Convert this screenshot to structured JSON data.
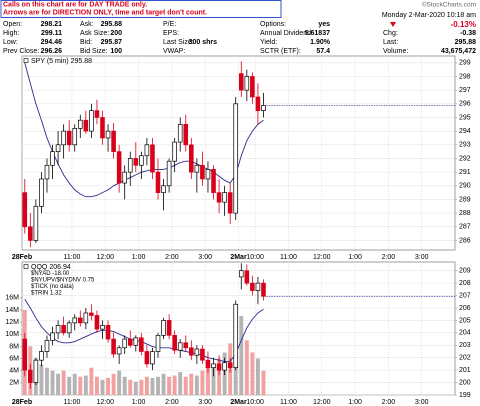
{
  "header": {
    "notice": [
      "Calls on this chart are for DAY TRADE only.",
      "Arrows are for DIRECTION ONLY, time and target don't count."
    ],
    "logo": "©StockCharts.com",
    "date": "Monday 2-Mar-2020 10:18 am",
    "change_pct": "-0.13%",
    "rows": [
      [
        [
          "Open:",
          "298.21"
        ],
        [
          "Ask:",
          "295.88"
        ],
        [
          "P/E:"
        ],
        [
          "Options:",
          "yes"
        ],
        null
      ],
      [
        [
          "High:",
          "299.11"
        ],
        [
          "Ask Size:",
          "200"
        ],
        [
          "EPS:"
        ],
        [
          "Annual Dividend:",
          "5.61837"
        ],
        [
          "Chg:",
          "-0.38"
        ]
      ],
      [
        [
          "Low:",
          "294.46"
        ],
        [
          "Bid:",
          "295.87"
        ],
        [
          "Last Size:",
          "300 shrs"
        ],
        [
          "Yield:",
          "1.90%"
        ],
        [
          "Last:",
          "295.88"
        ]
      ],
      [
        [
          "Prev Close:",
          "296.26"
        ],
        [
          "Bid Size:",
          "100"
        ],
        [
          "VWAP:"
        ],
        [
          "SCTR (ETF):",
          "57.4"
        ],
        [
          "Volume:",
          "43,675,472"
        ]
      ]
    ]
  },
  "chart_data": [
    {
      "type": "candlestick",
      "legend": "SPY (5 min)",
      "legend_value": 295.88,
      "categories": [
        "28Feb",
        null,
        null,
        null,
        null,
        null,
        null,
        null,
        null,
        "11:00",
        null,
        null,
        null,
        null,
        null,
        "12:00",
        null,
        null,
        null,
        null,
        null,
        "1:00",
        null,
        null,
        null,
        null,
        null,
        "2:00",
        null,
        null,
        null,
        null,
        null,
        "3:00",
        null,
        null,
        null,
        null,
        null,
        "2Mar",
        null,
        null,
        "10:00",
        null,
        null,
        null,
        null,
        null,
        "11:00",
        null,
        null,
        null,
        null,
        null,
        "12:00",
        null,
        null,
        null,
        null,
        null,
        "1:00",
        null,
        null,
        null,
        null,
        null,
        "2:00",
        null,
        null,
        null,
        null,
        null,
        "3:00",
        null,
        null,
        null,
        null,
        null
      ],
      "open": [
        289.5,
        287,
        286,
        288.5,
        290.5,
        291.5,
        292.5,
        293,
        294,
        293,
        294.2,
        294.8,
        294,
        295.5,
        295,
        293.5,
        294,
        292.5,
        290.2,
        291,
        292,
        291.5,
        292.2,
        293,
        291,
        289.5,
        290,
        291.8,
        293.2,
        294.5,
        293,
        291,
        291.5,
        290.5,
        291.2,
        289.5,
        288.8,
        289.5,
        288,
        298.21,
        297,
        298,
        296.5,
        295.5,
        null,
        null,
        null,
        null,
        null,
        null,
        null,
        null,
        null,
        null,
        null,
        null,
        null,
        null,
        null,
        null,
        null,
        null,
        null,
        null,
        null,
        null,
        null,
        null,
        null,
        null,
        null,
        null,
        null,
        null,
        null,
        null,
        null,
        null
      ],
      "high": [
        290.5,
        288,
        289,
        291,
        292,
        293,
        294,
        294.5,
        294.8,
        294.5,
        295.2,
        295.5,
        296,
        296.3,
        295.5,
        294.5,
        294.6,
        293,
        291.5,
        292.5,
        293.2,
        292.5,
        293.5,
        293.5,
        292,
        290.5,
        292,
        293.5,
        295,
        295.2,
        293.5,
        292,
        292.5,
        291.8,
        291.5,
        290.5,
        290,
        290.2,
        296.5,
        299.11,
        298.5,
        298.3,
        297.5,
        296.8,
        null,
        null,
        null,
        null,
        null,
        null,
        null,
        null,
        null,
        null,
        null,
        null,
        null,
        null,
        null,
        null,
        null,
        null,
        null,
        null,
        null,
        null,
        null,
        null,
        null,
        null,
        null,
        null,
        null,
        null,
        null,
        null,
        null,
        null
      ],
      "low": [
        286.5,
        285.5,
        285.8,
        288,
        289.5,
        290.5,
        291.5,
        292,
        292.5,
        292.5,
        293.5,
        293.8,
        293.5,
        294.5,
        293,
        292.5,
        292,
        289.5,
        289,
        290,
        291,
        290.5,
        291.5,
        290.5,
        289,
        288.2,
        289.5,
        291,
        292.5,
        292.5,
        290.5,
        289.5,
        290,
        289.5,
        289,
        288,
        287.8,
        287.2,
        287.5,
        296.5,
        296.2,
        296,
        294.46,
        295,
        null,
        null,
        null,
        null,
        null,
        null,
        null,
        null,
        null,
        null,
        null,
        null,
        null,
        null,
        null,
        null,
        null,
        null,
        null,
        null,
        null,
        null,
        null,
        null,
        null,
        null,
        null,
        null,
        null,
        null,
        null,
        null,
        null,
        null
      ],
      "close": [
        287,
        286,
        288.5,
        290.5,
        291.5,
        292.5,
        293,
        294,
        293,
        294.2,
        294.8,
        294,
        295.5,
        295,
        293.5,
        294,
        292.5,
        290.2,
        291,
        292,
        291.5,
        292.2,
        293,
        291,
        289.5,
        290,
        291.8,
        293.2,
        294.5,
        293,
        291,
        291.5,
        290.5,
        291.2,
        289.5,
        288.8,
        289.5,
        288,
        296,
        297,
        298,
        296.5,
        295.5,
        295.88,
        null,
        null,
        null,
        null,
        null,
        null,
        null,
        null,
        null,
        null,
        null,
        null,
        null,
        null,
        null,
        null,
        null,
        null,
        null,
        null,
        null,
        null,
        null,
        null,
        null,
        null,
        null,
        null,
        null,
        null,
        null,
        null,
        null,
        null
      ],
      "ma": {
        "color": "#2e2a8f",
        "values": [
          299,
          297.5,
          296,
          294.8,
          293.5,
          292.5,
          291.6,
          290.8,
          290.2,
          289.7,
          289.4,
          289.2,
          289.2,
          289.3,
          289.5,
          289.7,
          290,
          290.2,
          290.4,
          290.6,
          290.8,
          291,
          291.1,
          291.2,
          291.2,
          291.2,
          291.3,
          291.5,
          291.7,
          291.8,
          291.8,
          291.6,
          291.4,
          291.2,
          291,
          290.7,
          290.4,
          290.2,
          290.8,
          292.2,
          293.3,
          294,
          294.5,
          294.8,
          null,
          null,
          null,
          null,
          null,
          null,
          null,
          null,
          null,
          null,
          null,
          null,
          null,
          null,
          null,
          null,
          null,
          null,
          null,
          null,
          null,
          null,
          null,
          null,
          null,
          null,
          null,
          null,
          null,
          null,
          null,
          null,
          null,
          null
        ]
      },
      "up_color": "#000000",
      "down_color": "#d8001a",
      "ylim": [
        285.3,
        299.5
      ],
      "yticks": [
        286,
        287,
        288,
        289,
        290,
        291,
        292,
        293,
        294,
        295,
        296,
        297,
        298,
        299
      ],
      "grid": true
    },
    {
      "type": "candlestick",
      "legend": "QQQ",
      "legend_value": 206.94,
      "overlays": [
        "$NYAD -18.00",
        "$NYUPV/$NYDNV 0.75",
        "$TICK (no data)",
        "$TRIN 1.32"
      ],
      "categories": [
        "28Feb",
        null,
        null,
        null,
        null,
        null,
        null,
        null,
        null,
        "11:00",
        null,
        null,
        null,
        null,
        null,
        "12:00",
        null,
        null,
        null,
        null,
        null,
        "1:00",
        null,
        null,
        null,
        null,
        null,
        "2:00",
        null,
        null,
        null,
        null,
        null,
        "3:00",
        null,
        null,
        null,
        null,
        null,
        "2Mar",
        null,
        null,
        "10:00",
        null,
        null,
        null,
        null,
        null,
        "11:00",
        null,
        null,
        null,
        null,
        null,
        "12:00",
        null,
        null,
        null,
        null,
        null,
        "1:00",
        null,
        null,
        null,
        null,
        null,
        "2:00",
        null,
        null,
        null,
        null,
        null,
        "3:00",
        null,
        null,
        null,
        null,
        null
      ],
      "open": [
        203.5,
        201,
        200,
        201.8,
        202.5,
        203.4,
        204,
        204.6,
        204,
        204.8,
        205.2,
        204.8,
        205.6,
        205.4,
        204.3,
        204.6,
        203.5,
        202.3,
        202.8,
        203.5,
        203,
        203.6,
        202.5,
        201.5,
        202.5,
        203.8,
        205,
        203.8,
        202.6,
        203.2,
        202.8,
        202.2,
        202.7,
        201.8,
        201.2,
        201.5,
        201,
        201.6,
        201.2,
        208.5,
        209,
        208,
        207.4,
        208,
        null,
        null,
        null,
        null,
        null,
        null,
        null,
        null,
        null,
        null,
        null,
        null,
        null,
        null,
        null,
        null,
        null,
        null,
        null,
        null,
        null,
        null,
        null,
        null,
        null,
        null,
        null,
        null,
        null,
        null,
        null,
        null,
        null,
        null
      ],
      "high": [
        204,
        201.5,
        202,
        203,
        203.8,
        204.5,
        205,
        205.3,
        205,
        205.5,
        205.8,
        206,
        206.3,
        205.8,
        205,
        205,
        204,
        203,
        203.8,
        204.2,
        203.8,
        204,
        203,
        202.8,
        204,
        205.2,
        205.5,
        204.2,
        203.5,
        203.8,
        203.4,
        203,
        203,
        202.5,
        202,
        202.2,
        202,
        202,
        206.6,
        209.6,
        209.5,
        208.6,
        208.5,
        208.3,
        null,
        null,
        null,
        null,
        null,
        null,
        null,
        null,
        null,
        null,
        null,
        null,
        null,
        null,
        null,
        null,
        null,
        null,
        null,
        null,
        null,
        null,
        null,
        null,
        null,
        null,
        null,
        null,
        null,
        null,
        null,
        null,
        null,
        null
      ],
      "low": [
        200.5,
        199.5,
        199.8,
        201.3,
        202,
        203,
        203.5,
        203.8,
        203.6,
        204.2,
        204.5,
        204.3,
        205,
        204,
        203.5,
        203.2,
        202,
        201.5,
        202.3,
        202.8,
        202.5,
        202.2,
        201.2,
        201,
        202,
        203.5,
        203.5,
        202.3,
        202,
        202.5,
        201.8,
        201.5,
        201.5,
        200.8,
        200.5,
        200.6,
        200.6,
        200.8,
        201,
        207.5,
        207.8,
        207,
        206.3,
        206.6,
        null,
        null,
        null,
        null,
        null,
        null,
        null,
        null,
        null,
        null,
        null,
        null,
        null,
        null,
        null,
        null,
        null,
        null,
        null,
        null,
        null,
        null,
        null,
        null,
        null,
        null,
        null,
        null,
        null,
        null,
        null,
        null,
        null,
        null
      ],
      "close": [
        201,
        200,
        201.8,
        202.5,
        203.4,
        204,
        204.6,
        204,
        204.8,
        205.2,
        204.8,
        205.6,
        205.4,
        204.3,
        204.6,
        203.5,
        202.3,
        202.8,
        203.5,
        203,
        203.6,
        202.5,
        201.5,
        202.5,
        203.8,
        205,
        203.8,
        202.6,
        203.2,
        202.8,
        202.2,
        202.7,
        201.8,
        201.2,
        201.5,
        201,
        201.6,
        201.2,
        206.3,
        209,
        208,
        207.4,
        208,
        206.94,
        null,
        null,
        null,
        null,
        null,
        null,
        null,
        null,
        null,
        null,
        null,
        null,
        null,
        null,
        null,
        null,
        null,
        null,
        null,
        null,
        null,
        null,
        null,
        null,
        null,
        null,
        null,
        null,
        null,
        null,
        null,
        null,
        null,
        null
      ],
      "ma": {
        "color": "#2e2a8f",
        "values": [
          206.7,
          206,
          205.2,
          204.5,
          204,
          203.6,
          203.3,
          203.2,
          203.2,
          203.3,
          203.5,
          203.7,
          203.9,
          204.1,
          204.2,
          204.2,
          204.1,
          203.9,
          203.7,
          203.5,
          203.4,
          203.3,
          203.1,
          202.9,
          202.8,
          202.8,
          202.8,
          202.7,
          202.6,
          202.5,
          202.4,
          202.3,
          202.2,
          202,
          201.9,
          201.8,
          201.7,
          201.7,
          202.3,
          203.4,
          204.4,
          205.1,
          205.6,
          205.9,
          null,
          null,
          null,
          null,
          null,
          null,
          null,
          null,
          null,
          null,
          null,
          null,
          null,
          null,
          null,
          null,
          null,
          null,
          null,
          null,
          null,
          null,
          null,
          null,
          null,
          null,
          null,
          null,
          null,
          null,
          null,
          null,
          null,
          null
        ]
      },
      "volume": {
        "up_color": "#b4b4b4",
        "down_color": "#f2a0a0",
        "values": [
          14,
          8,
          6,
          5,
          4.5,
          4,
          3.5,
          4,
          3,
          3.5,
          3,
          3.2,
          4.5,
          3,
          2.5,
          2.8,
          3.5,
          4,
          3,
          2.5,
          2.2,
          2.5,
          3,
          2.8,
          3,
          3.5,
          3,
          3.2,
          3.8,
          3,
          3.5,
          3.2,
          4,
          4.5,
          5,
          6,
          7,
          8.5,
          12,
          13,
          9,
          7,
          6,
          4,
          null,
          null,
          null,
          null,
          null,
          null,
          null,
          null,
          null,
          null,
          null,
          null,
          null,
          null,
          null,
          null,
          null,
          null,
          null,
          null,
          null,
          null,
          null,
          null,
          null,
          null,
          null,
          null,
          null,
          null,
          null,
          null,
          null,
          null
        ]
      },
      "vlim": [
        0,
        21.9
      ],
      "vticks": [
        {
          "value": 2,
          "label": "2M"
        },
        {
          "value": 4,
          "label": "4M"
        },
        {
          "value": 6,
          "label": "6M"
        },
        {
          "value": 8,
          "label": "8M"
        },
        {
          "value": 10,
          "label": "10M"
        },
        {
          "value": 12,
          "label": "12M"
        },
        {
          "value": 14,
          "label": "14M"
        },
        {
          "value": 16,
          "label": "16M"
        }
      ],
      "up_color": "#000000",
      "down_color": "#d8001a",
      "ylim": [
        199,
        209.7
      ],
      "yticks": [
        199,
        200,
        201,
        202,
        203,
        204,
        205,
        206,
        207,
        208,
        209
      ],
      "grid": true
    }
  ]
}
